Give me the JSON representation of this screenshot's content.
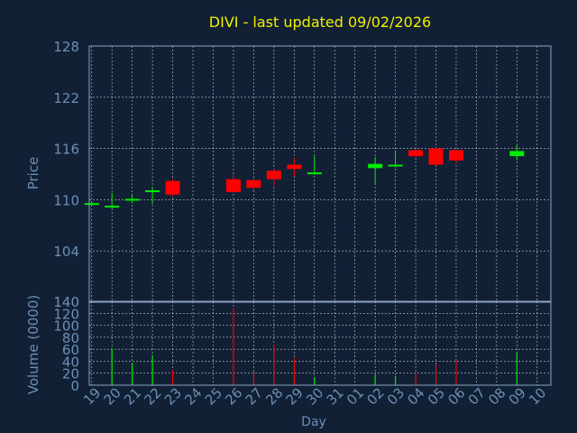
{
  "chart_data": [
    {
      "type": "candlestick",
      "title": "DIVI - last updated 09/02/2026",
      "ylabel": "Price",
      "ylim": [
        98,
        128
      ],
      "yticks": [
        "128",
        "122",
        "116",
        "110",
        "104"
      ],
      "grid": true,
      "colors": {
        "up": "#00ee00",
        "down": "#ff0000",
        "background": "#112035",
        "title": "#f0f000",
        "text": "#6c8fb6"
      },
      "categories": [
        "19",
        "20",
        "21",
        "22",
        "23",
        "24",
        "25",
        "26",
        "27",
        "28",
        "29",
        "30",
        "31",
        "01",
        "02",
        "03",
        "04",
        "05",
        "06",
        "07",
        "08",
        "09",
        "10"
      ],
      "candles": [
        {
          "x": "19",
          "open": 109.6,
          "high": 109.8,
          "low": 109.4,
          "close": 109.6
        },
        {
          "x": "20",
          "open": 109.2,
          "high": 110.8,
          "low": 109.0,
          "close": 109.3
        },
        {
          "x": "21",
          "open": 109.9,
          "high": 110.5,
          "low": 109.6,
          "close": 110.1
        },
        {
          "x": "22",
          "open": 110.9,
          "high": 111.5,
          "low": 109.5,
          "close": 111.1
        },
        {
          "x": "23",
          "open": 112.2,
          "high": 112.4,
          "low": 110.4,
          "close": 110.6
        },
        {
          "x": "26",
          "open": 112.4,
          "high": 112.9,
          "low": 110.8,
          "close": 110.9
        },
        {
          "x": "27",
          "open": 112.3,
          "high": 112.5,
          "low": 111.1,
          "close": 111.4
        },
        {
          "x": "28",
          "open": 113.4,
          "high": 113.6,
          "low": 111.6,
          "close": 112.4
        },
        {
          "x": "29",
          "open": 114.1,
          "high": 114.9,
          "low": 112.8,
          "close": 113.6
        },
        {
          "x": "30",
          "open": 113.0,
          "high": 115.1,
          "low": 112.9,
          "close": 113.2
        },
        {
          "x": "02",
          "open": 113.7,
          "high": 115.0,
          "low": 111.8,
          "close": 114.2
        },
        {
          "x": "03",
          "open": 113.9,
          "high": 115.8,
          "low": 113.8,
          "close": 114.1
        },
        {
          "x": "04",
          "open": 115.8,
          "high": 116.0,
          "low": 115.0,
          "close": 115.1
        },
        {
          "x": "05",
          "open": 116.0,
          "high": 116.1,
          "low": 114.0,
          "close": 114.1
        },
        {
          "x": "06",
          "open": 115.8,
          "high": 115.9,
          "low": 114.2,
          "close": 114.6
        },
        {
          "x": "09",
          "open": 115.1,
          "high": 116.4,
          "low": 114.6,
          "close": 115.7
        }
      ]
    },
    {
      "type": "bar",
      "ylabel": "Volume (0000)",
      "xlabel": "Day",
      "ylim": [
        0,
        140
      ],
      "yticks": [
        "140",
        "120",
        "100",
        "80",
        "60",
        "40",
        "20",
        "0"
      ],
      "grid": true,
      "categories": [
        "19",
        "20",
        "21",
        "22",
        "23",
        "24",
        "25",
        "26",
        "27",
        "28",
        "29",
        "30",
        "31",
        "01",
        "02",
        "03",
        "04",
        "05",
        "06",
        "07",
        "08",
        "09",
        "10"
      ],
      "bars": [
        {
          "x": "19",
          "value": 2,
          "direction": "up"
        },
        {
          "x": "20",
          "value": 62,
          "direction": "up"
        },
        {
          "x": "21",
          "value": 37,
          "direction": "up"
        },
        {
          "x": "22",
          "value": 50,
          "direction": "up"
        },
        {
          "x": "23",
          "value": 25,
          "direction": "down"
        },
        {
          "x": "26",
          "value": 128,
          "direction": "down"
        },
        {
          "x": "27",
          "value": 22,
          "direction": "down"
        },
        {
          "x": "28",
          "value": 67,
          "direction": "down"
        },
        {
          "x": "29",
          "value": 45,
          "direction": "down"
        },
        {
          "x": "30",
          "value": 13,
          "direction": "up"
        },
        {
          "x": "02",
          "value": 17,
          "direction": "up"
        },
        {
          "x": "03",
          "value": 15,
          "direction": "up"
        },
        {
          "x": "04",
          "value": 19,
          "direction": "down"
        },
        {
          "x": "05",
          "value": 35,
          "direction": "down"
        },
        {
          "x": "06",
          "value": 41,
          "direction": "down"
        },
        {
          "x": "09",
          "value": 54,
          "direction": "up"
        }
      ]
    }
  ]
}
